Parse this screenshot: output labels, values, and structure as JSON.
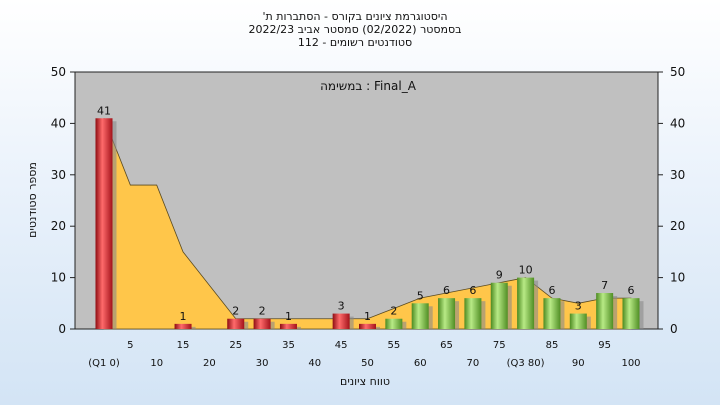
{
  "chart_data": {
    "type": "bar",
    "title_lines": [
      "'היסטוגרמת ציונים בקורס - הסתברות ת",
      "בסמסטר  (02/2022)  סמסטר אביב 2022/23",
      "סטודנטים רשומים - 112"
    ],
    "annotation": "במשימה : Final_A",
    "ylabel": "מספר סטודנטים",
    "xlabel": "טווח ציונים",
    "ylim": [
      0,
      50
    ],
    "y_ticks": [
      0,
      10,
      20,
      30,
      40,
      50
    ],
    "grid": false,
    "x_ticks_row1": [
      "5",
      "15",
      "25",
      "35",
      "45",
      "55",
      "65",
      "75",
      "85",
      "95"
    ],
    "x_ticks_row2": [
      "(Q1 0)",
      "10",
      "20",
      "30",
      "40",
      "50",
      "60",
      "70",
      "(Q3 80)",
      "90",
      "100"
    ],
    "categories": [
      "0",
      "10",
      "15",
      "25",
      "30",
      "35",
      "45",
      "50",
      "55",
      "60",
      "65",
      "70",
      "75",
      "80",
      "85",
      "90",
      "95",
      "100"
    ],
    "x": [
      0,
      10,
      15,
      25,
      30,
      35,
      45,
      50,
      55,
      60,
      65,
      70,
      75,
      80,
      85,
      90,
      95,
      100
    ],
    "values": [
      41,
      0,
      1,
      2,
      2,
      1,
      3,
      1,
      2,
      5,
      6,
      6,
      9,
      10,
      6,
      3,
      7,
      6
    ],
    "data_labels": [
      "41",
      "",
      "1",
      "2",
      "2",
      "1",
      "3",
      "1",
      "2",
      "5",
      "6",
      "6",
      "9",
      "10",
      "6",
      "3",
      "7",
      "6"
    ],
    "area_series": {
      "x": [
        0,
        5,
        10,
        15,
        25,
        35,
        45,
        50,
        55,
        60,
        65,
        70,
        75,
        80,
        85,
        90,
        95,
        100
      ],
      "values": [
        41,
        28,
        28,
        15,
        2,
        2,
        2,
        2,
        4,
        6,
        7,
        8,
        9,
        10,
        6,
        5,
        6,
        6
      ]
    },
    "colors": {
      "bar_low": "#e0202a",
      "bar_high": "#7dc242",
      "area": "#ffc64a",
      "plot_bg": "#c0c0c0"
    }
  }
}
